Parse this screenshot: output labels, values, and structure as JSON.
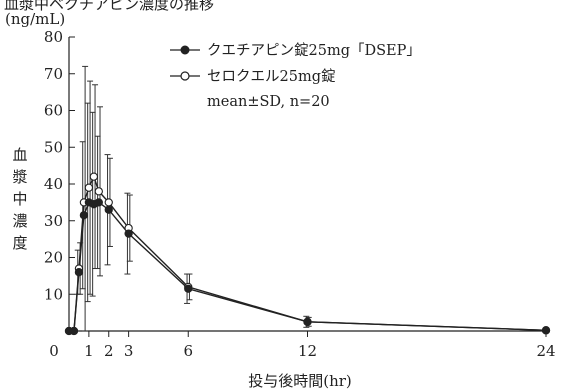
{
  "header_partial": "血漿中ベクチアピン濃度の推移",
  "chart_data": {
    "type": "line",
    "title": "",
    "ylabel": "血漿中濃度",
    "yunit": "(ng/mL)",
    "xlabel": "投与後時間(hr)",
    "ylim": [
      0,
      80
    ],
    "xlim": [
      0,
      24
    ],
    "yticks": [
      10,
      20,
      30,
      40,
      50,
      60,
      70,
      80
    ],
    "xtick_values": [
      0,
      1,
      2,
      3,
      6,
      12,
      24
    ],
    "xtick_labels": [
      "0",
      "1",
      "2",
      "3",
      "6",
      "12",
      "24"
    ],
    "legend_note": "mean±SD, n=20",
    "legend_position": "top-right",
    "series": [
      {
        "name": "クエチアピン錠25mg「DSEP」",
        "marker": "filled-circle",
        "color": "#222222",
        "x": [
          0,
          0.25,
          0.5,
          0.75,
          1,
          1.25,
          1.5,
          2,
          3,
          6,
          12,
          24
        ],
        "y": [
          0,
          0,
          16,
          31.5,
          35,
          34.5,
          35,
          33,
          26.5,
          11.5,
          2.5,
          0.2
        ],
        "sd": [
          0,
          0,
          6,
          20,
          27,
          25,
          18,
          15,
          11,
          4,
          1.5,
          0
        ]
      },
      {
        "name": "セロクエル25mg錠",
        "marker": "open-circle",
        "color": "#222222",
        "x": [
          0,
          0.25,
          0.5,
          0.75,
          1,
          1.25,
          1.5,
          2,
          3,
          6,
          12,
          24
        ],
        "y": [
          0,
          0,
          17,
          35,
          39,
          42,
          38,
          35,
          28,
          12,
          2.5,
          0.2
        ],
        "sd": [
          0,
          0,
          7,
          37,
          29,
          25,
          23,
          12,
          9,
          3.5,
          1.2,
          0
        ]
      }
    ]
  }
}
